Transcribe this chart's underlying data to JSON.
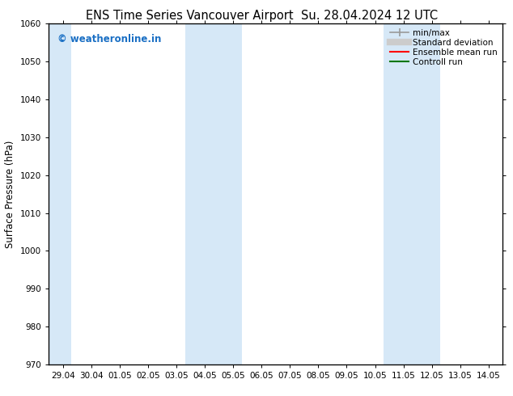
{
  "title_left": "ENS Time Series Vancouver Airport",
  "title_right": "Su. 28.04.2024 12 UTC",
  "ylabel": "Surface Pressure (hPa)",
  "ylim": [
    970,
    1060
  ],
  "yticks": [
    970,
    980,
    990,
    1000,
    1010,
    1020,
    1030,
    1040,
    1050,
    1060
  ],
  "xtick_labels": [
    "29.04",
    "30.04",
    "01.05",
    "02.05",
    "03.05",
    "04.05",
    "05.05",
    "06.05",
    "07.05",
    "08.05",
    "09.05",
    "10.05",
    "11.05",
    "12.05",
    "13.05",
    "14.05"
  ],
  "xtick_positions": [
    0,
    1,
    2,
    3,
    4,
    5,
    6,
    7,
    8,
    9,
    10,
    11,
    12,
    13,
    14,
    15
  ],
  "xlim": [
    -0.5,
    15.5
  ],
  "shaded_bands": [
    {
      "x_start": -0.5,
      "x_end": 0.3
    },
    {
      "x_start": 4.3,
      "x_end": 6.3
    },
    {
      "x_start": 11.3,
      "x_end": 13.3
    }
  ],
  "shade_color": "#d6e8f7",
  "background_color": "#ffffff",
  "watermark_text": "© weatheronline.in",
  "watermark_color": "#1a6fc4",
  "legend_items": [
    {
      "label": "min/max",
      "color": "#999999",
      "lw": 1.2
    },
    {
      "label": "Standard deviation",
      "color": "#cccccc",
      "lw": 6
    },
    {
      "label": "Ensemble mean run",
      "color": "#ff0000",
      "lw": 1.5
    },
    {
      "label": "Controll run",
      "color": "#007700",
      "lw": 1.5
    }
  ],
  "title_fontsize": 10.5,
  "tick_fontsize": 7.5,
  "ylabel_fontsize": 8.5,
  "watermark_fontsize": 8.5,
  "legend_fontsize": 7.5
}
